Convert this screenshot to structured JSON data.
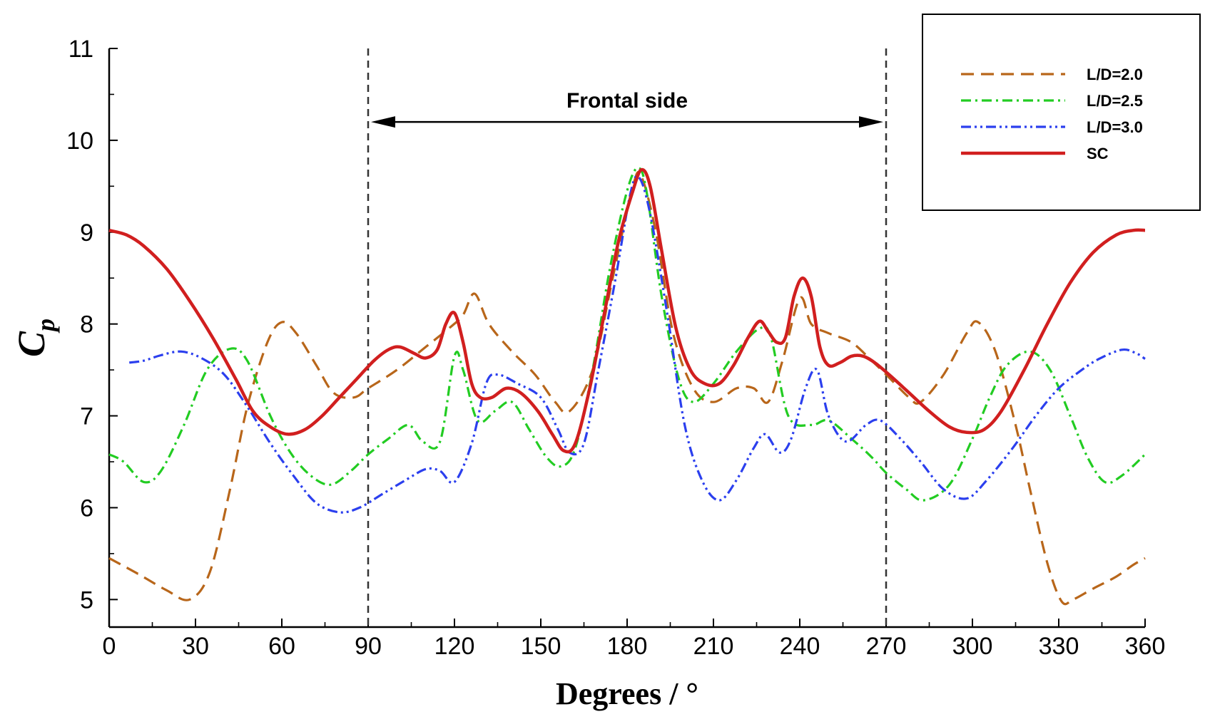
{
  "chart_data": {
    "type": "line",
    "title": "",
    "xlabel": "Degrees / °",
    "ylabel": "C",
    "ylabel_subscript": "p",
    "xlim": [
      0,
      360
    ],
    "ylim": [
      4.7,
      11
    ],
    "xticks": [
      "0",
      "30",
      "60",
      "90",
      "120",
      "150",
      "180",
      "210",
      "240",
      "270",
      "300",
      "330",
      "360"
    ],
    "yticks": [
      "5",
      "6",
      "7",
      "8",
      "9",
      "10",
      "11"
    ],
    "grid": false,
    "legend_position": "top-right",
    "annotation": {
      "text": "Frontal side",
      "x_start": 90,
      "x_end": 270,
      "y": 10.2,
      "reference_lines_x": [
        90,
        270
      ]
    },
    "series": [
      {
        "name": "L/D=2.0",
        "color": "#b8661a",
        "dash": "dashed",
        "points": [
          [
            0,
            5.45
          ],
          [
            10,
            5.28
          ],
          [
            20,
            5.1
          ],
          [
            28,
            5.0
          ],
          [
            35,
            5.3
          ],
          [
            42,
            6.2
          ],
          [
            48,
            7.1
          ],
          [
            55,
            7.8
          ],
          [
            60,
            8.02
          ],
          [
            65,
            7.9
          ],
          [
            72,
            7.55
          ],
          [
            78,
            7.25
          ],
          [
            85,
            7.2
          ],
          [
            90,
            7.3
          ],
          [
            100,
            7.5
          ],
          [
            110,
            7.75
          ],
          [
            118,
            7.95
          ],
          [
            123,
            8.1
          ],
          [
            127,
            8.33
          ],
          [
            132,
            8.0
          ],
          [
            140,
            7.7
          ],
          [
            148,
            7.45
          ],
          [
            155,
            7.15
          ],
          [
            160,
            7.05
          ],
          [
            168,
            7.5
          ],
          [
            175,
            8.5
          ],
          [
            182,
            9.5
          ],
          [
            185,
            9.6
          ],
          [
            190,
            9.0
          ],
          [
            196,
            7.9
          ],
          [
            203,
            7.3
          ],
          [
            210,
            7.15
          ],
          [
            218,
            7.3
          ],
          [
            224,
            7.3
          ],
          [
            229,
            7.15
          ],
          [
            234,
            7.6
          ],
          [
            240,
            8.28
          ],
          [
            244,
            8.0
          ],
          [
            250,
            7.9
          ],
          [
            258,
            7.8
          ],
          [
            265,
            7.6
          ],
          [
            270,
            7.45
          ],
          [
            278,
            7.2
          ],
          [
            282,
            7.15
          ],
          [
            290,
            7.45
          ],
          [
            298,
            7.9
          ],
          [
            302,
            8.02
          ],
          [
            308,
            7.7
          ],
          [
            315,
            6.9
          ],
          [
            320,
            6.2
          ],
          [
            326,
            5.4
          ],
          [
            331,
            4.98
          ],
          [
            335,
            5.0
          ],
          [
            342,
            5.12
          ],
          [
            350,
            5.25
          ],
          [
            356,
            5.38
          ],
          [
            360,
            5.45
          ]
        ]
      },
      {
        "name": "L/D=2.5",
        "color": "#22cc22",
        "dash": "dashdot",
        "points": [
          [
            0,
            6.58
          ],
          [
            5,
            6.5
          ],
          [
            12,
            6.28
          ],
          [
            18,
            6.4
          ],
          [
            26,
            6.9
          ],
          [
            34,
            7.5
          ],
          [
            42,
            7.73
          ],
          [
            48,
            7.6
          ],
          [
            56,
            7.0
          ],
          [
            63,
            6.6
          ],
          [
            70,
            6.35
          ],
          [
            77,
            6.25
          ],
          [
            84,
            6.4
          ],
          [
            90,
            6.58
          ],
          [
            97,
            6.75
          ],
          [
            104,
            6.9
          ],
          [
            109,
            6.72
          ],
          [
            115,
            6.72
          ],
          [
            120,
            7.65
          ],
          [
            123,
            7.5
          ],
          [
            128,
            6.95
          ],
          [
            134,
            7.05
          ],
          [
            140,
            7.15
          ],
          [
            146,
            6.85
          ],
          [
            152,
            6.55
          ],
          [
            157,
            6.45
          ],
          [
            162,
            6.65
          ],
          [
            168,
            7.5
          ],
          [
            174,
            8.6
          ],
          [
            180,
            9.45
          ],
          [
            184,
            9.7
          ],
          [
            187,
            9.4
          ],
          [
            192,
            8.3
          ],
          [
            198,
            7.4
          ],
          [
            203,
            7.15
          ],
          [
            210,
            7.35
          ],
          [
            218,
            7.7
          ],
          [
            226,
            7.95
          ],
          [
            230,
            7.85
          ],
          [
            236,
            7.0
          ],
          [
            244,
            6.9
          ],
          [
            250,
            6.95
          ],
          [
            258,
            6.75
          ],
          [
            265,
            6.55
          ],
          [
            270,
            6.38
          ],
          [
            277,
            6.2
          ],
          [
            283,
            6.08
          ],
          [
            292,
            6.25
          ],
          [
            300,
            6.75
          ],
          [
            306,
            7.2
          ],
          [
            312,
            7.55
          ],
          [
            320,
            7.7
          ],
          [
            327,
            7.5
          ],
          [
            334,
            7.0
          ],
          [
            340,
            6.55
          ],
          [
            346,
            6.28
          ],
          [
            352,
            6.35
          ],
          [
            360,
            6.58
          ]
        ]
      },
      {
        "name": "L/D=3.0",
        "color": "#2b3fee",
        "dash": "dashdotdot",
        "points": [
          [
            7,
            7.58
          ],
          [
            12,
            7.6
          ],
          [
            18,
            7.66
          ],
          [
            25,
            7.7
          ],
          [
            32,
            7.63
          ],
          [
            40,
            7.45
          ],
          [
            48,
            7.1
          ],
          [
            56,
            6.7
          ],
          [
            64,
            6.35
          ],
          [
            72,
            6.05
          ],
          [
            80,
            5.95
          ],
          [
            87,
            6.0
          ],
          [
            95,
            6.15
          ],
          [
            103,
            6.3
          ],
          [
            110,
            6.42
          ],
          [
            115,
            6.4
          ],
          [
            120,
            6.28
          ],
          [
            126,
            6.7
          ],
          [
            131,
            7.35
          ],
          [
            135,
            7.45
          ],
          [
            142,
            7.35
          ],
          [
            150,
            7.2
          ],
          [
            156,
            6.85
          ],
          [
            160,
            6.6
          ],
          [
            165,
            6.7
          ],
          [
            170,
            7.5
          ],
          [
            176,
            8.5
          ],
          [
            181,
            9.4
          ],
          [
            184,
            9.6
          ],
          [
            188,
            9.2
          ],
          [
            194,
            8.1
          ],
          [
            200,
            6.9
          ],
          [
            206,
            6.3
          ],
          [
            212,
            6.08
          ],
          [
            218,
            6.3
          ],
          [
            224,
            6.65
          ],
          [
            228,
            6.8
          ],
          [
            233,
            6.6
          ],
          [
            237,
            6.75
          ],
          [
            242,
            7.3
          ],
          [
            246,
            7.5
          ],
          [
            250,
            7.0
          ],
          [
            256,
            6.72
          ],
          [
            263,
            6.9
          ],
          [
            268,
            6.95
          ],
          [
            275,
            6.75
          ],
          [
            282,
            6.5
          ],
          [
            290,
            6.2
          ],
          [
            298,
            6.1
          ],
          [
            305,
            6.3
          ],
          [
            314,
            6.65
          ],
          [
            322,
            7.0
          ],
          [
            330,
            7.3
          ],
          [
            338,
            7.5
          ],
          [
            344,
            7.62
          ],
          [
            352,
            7.72
          ],
          [
            357,
            7.68
          ],
          [
            360,
            7.62
          ]
        ]
      },
      {
        "name": "SC",
        "color": "#d11f1f",
        "dash": "solid",
        "points": [
          [
            0,
            9.02
          ],
          [
            6,
            8.97
          ],
          [
            12,
            8.85
          ],
          [
            20,
            8.6
          ],
          [
            28,
            8.25
          ],
          [
            36,
            7.85
          ],
          [
            44,
            7.4
          ],
          [
            50,
            7.05
          ],
          [
            56,
            6.88
          ],
          [
            62,
            6.8
          ],
          [
            68,
            6.85
          ],
          [
            74,
            7.0
          ],
          [
            80,
            7.2
          ],
          [
            86,
            7.4
          ],
          [
            92,
            7.6
          ],
          [
            97,
            7.72
          ],
          [
            101,
            7.75
          ],
          [
            106,
            7.68
          ],
          [
            110,
            7.63
          ],
          [
            114,
            7.72
          ],
          [
            117,
            8.0
          ],
          [
            120,
            8.12
          ],
          [
            123,
            7.8
          ],
          [
            126,
            7.35
          ],
          [
            129,
            7.2
          ],
          [
            133,
            7.2
          ],
          [
            138,
            7.3
          ],
          [
            143,
            7.25
          ],
          [
            149,
            7.05
          ],
          [
            154,
            6.8
          ],
          [
            158,
            6.62
          ],
          [
            162,
            6.7
          ],
          [
            167,
            7.3
          ],
          [
            172,
            8.1
          ],
          [
            177,
            8.9
          ],
          [
            182,
            9.45
          ],
          [
            185,
            9.68
          ],
          [
            188,
            9.5
          ],
          [
            192,
            8.8
          ],
          [
            197,
            7.95
          ],
          [
            202,
            7.5
          ],
          [
            207,
            7.35
          ],
          [
            212,
            7.35
          ],
          [
            217,
            7.55
          ],
          [
            222,
            7.85
          ],
          [
            226,
            8.03
          ],
          [
            229,
            7.92
          ],
          [
            232,
            7.8
          ],
          [
            235,
            7.85
          ],
          [
            238,
            8.3
          ],
          [
            241,
            8.5
          ],
          [
            244,
            8.3
          ],
          [
            247,
            7.75
          ],
          [
            250,
            7.55
          ],
          [
            254,
            7.58
          ],
          [
            258,
            7.65
          ],
          [
            262,
            7.65
          ],
          [
            266,
            7.58
          ],
          [
            271,
            7.45
          ],
          [
            278,
            7.25
          ],
          [
            285,
            7.05
          ],
          [
            292,
            6.88
          ],
          [
            298,
            6.82
          ],
          [
            304,
            6.85
          ],
          [
            310,
            7.05
          ],
          [
            318,
            7.5
          ],
          [
            326,
            8.0
          ],
          [
            334,
            8.45
          ],
          [
            342,
            8.78
          ],
          [
            350,
            8.97
          ],
          [
            356,
            9.02
          ],
          [
            360,
            9.02
          ]
        ]
      }
    ]
  }
}
